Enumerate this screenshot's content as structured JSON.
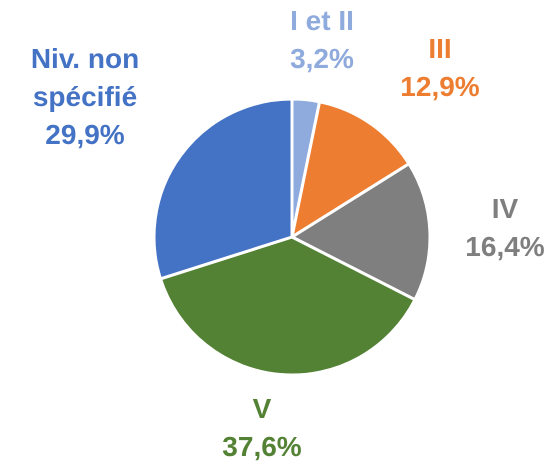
{
  "chart_data": {
    "type": "pie",
    "categories": [
      "I et II",
      "III",
      "IV",
      "V",
      "Niv. non spécifié"
    ],
    "values": [
      3.2,
      12.9,
      16.4,
      37.6,
      29.9
    ],
    "value_labels": [
      "3,2%",
      "12,9%",
      "16,4%",
      "37,6%",
      "29,9%"
    ],
    "colors": [
      "#8faadc",
      "#ed7d31",
      "#7f7f7f",
      "#548235",
      "#4472c4"
    ]
  }
}
